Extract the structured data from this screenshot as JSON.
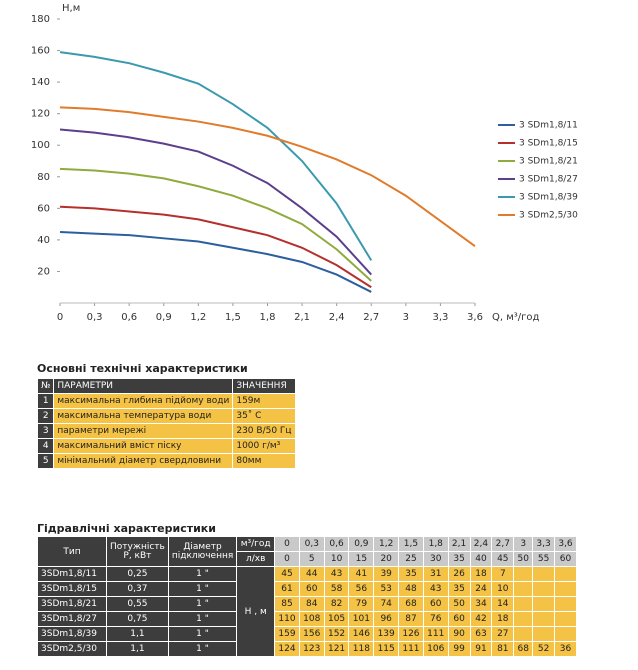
{
  "chart_data": {
    "type": "line",
    "y_label": "H,м",
    "x_label": "Q, м³/год",
    "x": [
      0,
      0.3,
      0.6,
      0.9,
      1.2,
      1.5,
      1.8,
      2.1,
      2.4,
      2.7,
      3,
      3.3,
      3.6
    ],
    "xlim": [
      0,
      3.6
    ],
    "ylim": [
      0,
      180
    ],
    "xticks": [
      0,
      {
        "value": 0.3,
        "label": "0,3"
      },
      {
        "value": 0.6,
        "label": "0,6"
      },
      {
        "value": 0.9,
        "label": "0,9"
      },
      {
        "value": 1.2,
        "label": "1,2"
      },
      {
        "value": 1.5,
        "label": "1,5"
      },
      {
        "value": 1.8,
        "label": "1,8"
      },
      {
        "value": 2.1,
        "label": "2,1"
      },
      {
        "value": 2.4,
        "label": "2,4"
      },
      {
        "value": 2.7,
        "label": "2,7"
      },
      3,
      {
        "value": 3.3,
        "label": "3,3"
      },
      {
        "value": 3.6,
        "label": "3,6"
      }
    ],
    "yticks": [
      20,
      40,
      60,
      80,
      100,
      120,
      140,
      160,
      180
    ],
    "series": [
      {
        "name": "3 SDm1,8/11",
        "color": "#2b5f9e",
        "values": [
          45,
          44,
          43,
          41,
          39,
          35,
          31,
          26,
          18,
          7,
          null,
          null,
          null
        ]
      },
      {
        "name": "3 SDm1,8/15",
        "color": "#b5302d",
        "values": [
          61,
          60,
          58,
          56,
          53,
          48,
          43,
          35,
          24,
          10,
          null,
          null,
          null
        ]
      },
      {
        "name": "3 SDm1,8/21",
        "color": "#8fab3d",
        "values": [
          85,
          84,
          82,
          79,
          74,
          68,
          60,
          50,
          34,
          14,
          null,
          null,
          null
        ]
      },
      {
        "name": "3 SDm1,8/27",
        "color": "#5c3f8c",
        "values": [
          110,
          108,
          105,
          101,
          96,
          87,
          76,
          60,
          42,
          18,
          null,
          null,
          null
        ]
      },
      {
        "name": "3 SDm1,8/39",
        "color": "#3b9aae",
        "values": [
          159,
          156,
          152,
          146,
          139,
          126,
          111,
          90,
          63,
          27,
          null,
          null,
          null
        ]
      },
      {
        "name": "3 SDm2,5/30",
        "color": "#e07b2b",
        "values": [
          124,
          123,
          121,
          118,
          115,
          111,
          106,
          99,
          91,
          81,
          68,
          52,
          36
        ]
      }
    ]
  },
  "specs": {
    "title": "Основні технічні характеристики",
    "header": [
      "№",
      "ПАРАМЕТРИ",
      "ЗНАЧЕННЯ"
    ],
    "rows": [
      [
        "1",
        "максимальна глибина підйому води",
        "159м"
      ],
      [
        "2",
        "максимальна температура води",
        "35˚ C"
      ],
      [
        "3",
        "параметри мережі",
        "230 В/50 Гц"
      ],
      [
        "4",
        "максимальний вміст піску",
        "1000 г/м³"
      ],
      [
        "5",
        "мінімальний діаметр свердловини",
        "80мм"
      ]
    ]
  },
  "hydraulic": {
    "title": "Гідравлічні характеристики",
    "header": [
      "Тип",
      "Потужність Р, кВт",
      "Діаметр підключення",
      "м³/год",
      "л/хв",
      "Н , м"
    ],
    "lpm": [
      0,
      5,
      10,
      15,
      20,
      25,
      30,
      35,
      40,
      45,
      50,
      55,
      60
    ],
    "rows": [
      [
        "3SDm1,8/11",
        "0,25",
        "1 \""
      ],
      [
        "3SDm1,8/15",
        "0,37",
        "1 \""
      ],
      [
        "3SDm1,8/21",
        "0,55",
        "1 \""
      ],
      [
        "3SDm1,8/27",
        "0,75",
        "1 \""
      ],
      [
        "3SDm1,8/39",
        "1,1",
        "1 \""
      ],
      [
        "3SDm2,5/30",
        "1,1",
        "1 \""
      ]
    ]
  }
}
